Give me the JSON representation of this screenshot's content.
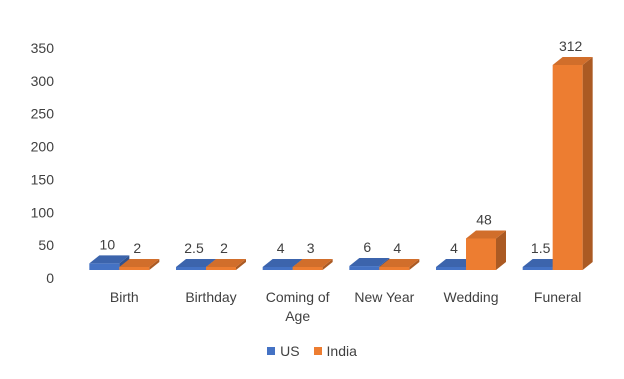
{
  "chart_data": {
    "type": "bar",
    "categories": [
      "Birth",
      "Birthday",
      "Coming of Age",
      "New Year",
      "Wedding",
      "Funeral"
    ],
    "category_lines": [
      [
        "Birth"
      ],
      [
        "Birthday"
      ],
      [
        "Coming of",
        "Age"
      ],
      [
        "New Year"
      ],
      [
        "Wedding"
      ],
      [
        "Funeral"
      ]
    ],
    "series": [
      {
        "name": "US",
        "values": [
          10,
          2.5,
          4,
          6,
          4,
          1.5
        ],
        "labels": [
          "10",
          "2.5",
          "4",
          "6",
          "4",
          "1.5"
        ],
        "color": "#4472C4"
      },
      {
        "name": "India",
        "values": [
          2,
          2,
          3,
          4,
          48,
          312
        ],
        "labels": [
          "2",
          "2",
          "3",
          "4",
          "48",
          "312"
        ],
        "color": "#ED7D31"
      }
    ],
    "yticks": [
      "0",
      "50",
      "100",
      "150",
      "200",
      "250",
      "300",
      "350"
    ],
    "ylim": [
      0,
      350
    ],
    "style": "3d-clustered-column",
    "gridlines": false,
    "legend_position": "bottom"
  }
}
